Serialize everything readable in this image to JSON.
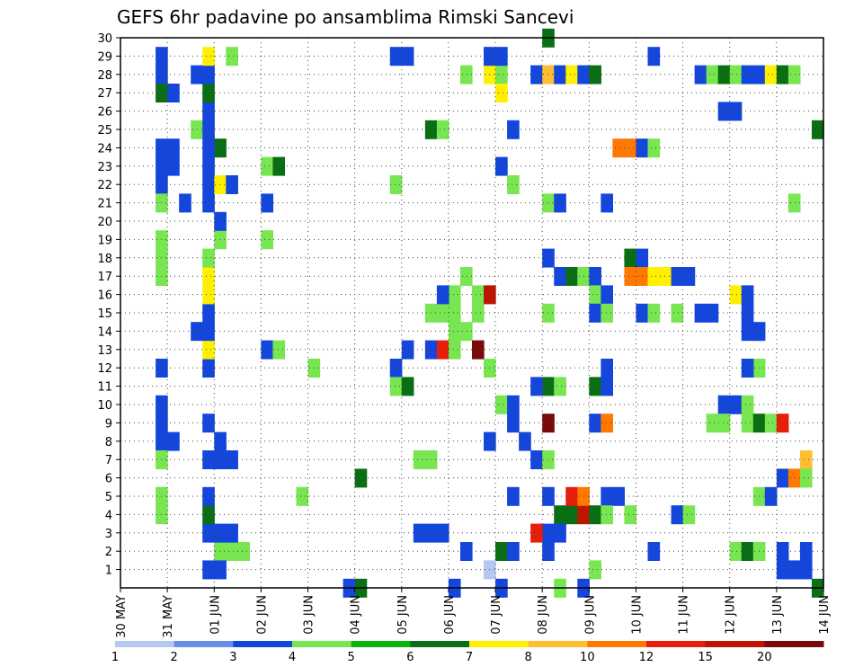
{
  "chart_data": {
    "type": "heatmap",
    "title": "GEFS 6hr padavine po ansamblima Rimski Sancevi",
    "xlabel": "",
    "ylabel": "",
    "x_tick_labels": [
      "30 MAY",
      "31 MAY",
      "01 JUN",
      "02 JUN",
      "03 JUN",
      "04 JUN",
      "05 JUN",
      "06 JUN",
      "07 JUN",
      "08 JUN",
      "09 JUN",
      "10 JUN",
      "11 JUN",
      "12 JUN",
      "13 JUN",
      "14 JUN"
    ],
    "y_tick_labels": [
      "1",
      "2",
      "3",
      "4",
      "5",
      "6",
      "7",
      "8",
      "9",
      "10",
      "11",
      "12",
      "13",
      "14",
      "15",
      "16",
      "17",
      "18",
      "19",
      "20",
      "21",
      "22",
      "23",
      "24",
      "25",
      "26",
      "27",
      "28",
      "29",
      "30"
    ],
    "xlim_days": [
      0,
      15
    ],
    "ylim_members": [
      0,
      30
    ],
    "cells_per_day": 4,
    "grid": "dotted",
    "legend": {
      "position": "bottom",
      "labels": [
        "1",
        "2",
        "3",
        "4",
        "5",
        "6",
        "7",
        "8",
        "10",
        "12",
        "15",
        "20"
      ],
      "colors": [
        "#b4c8f0",
        "#6690e8",
        "#1446dc",
        "#78e650",
        "#0ab40a",
        "#0a6e14",
        "#fff000",
        "#ffbe32",
        "#ff7800",
        "#e61e0a",
        "#be1400",
        "#780a0a"
      ]
    },
    "cells": [
      [
        1.75,
        1,
        2
      ],
      [
        2.0,
        2,
        3
      ],
      [
        2.25,
        2,
        3
      ],
      [
        2.5,
        2,
        3
      ],
      [
        1.75,
        3,
        2
      ],
      [
        2.0,
        3,
        2
      ],
      [
        2.25,
        3,
        2
      ],
      [
        1.75,
        4,
        5
      ],
      [
        1.75,
        5,
        2
      ],
      [
        1.75,
        7,
        2
      ],
      [
        2.0,
        7,
        2
      ],
      [
        2.25,
        7,
        2
      ],
      [
        2.0,
        8,
        2
      ],
      [
        1.75,
        9,
        2
      ],
      [
        1.75,
        12,
        2
      ],
      [
        1.75,
        13,
        6
      ],
      [
        1.5,
        14,
        2
      ],
      [
        1.75,
        14,
        2
      ],
      [
        1.75,
        15,
        2
      ],
      [
        1.75,
        16,
        6
      ],
      [
        1.75,
        17,
        6
      ],
      [
        1.75,
        18,
        3
      ],
      [
        2.0,
        19,
        3
      ],
      [
        2.0,
        20,
        2
      ],
      [
        1.75,
        21,
        2
      ],
      [
        1.75,
        22,
        2
      ],
      [
        2.0,
        22,
        6
      ],
      [
        2.25,
        22,
        2
      ],
      [
        1.75,
        23,
        2
      ],
      [
        2.0,
        24,
        5
      ],
      [
        1.75,
        24,
        2
      ],
      [
        1.5,
        25,
        3
      ],
      [
        1.75,
        25,
        2
      ],
      [
        1.75,
        26,
        2
      ],
      [
        1.75,
        27,
        5
      ],
      [
        1.5,
        28,
        2
      ],
      [
        1.75,
        28,
        2
      ],
      [
        1.75,
        29,
        6
      ],
      [
        2.25,
        29,
        3
      ],
      [
        2.0,
        1,
        2
      ],
      [
        0.75,
        29,
        2
      ],
      [
        0.75,
        28,
        2
      ],
      [
        0.75,
        27,
        5
      ],
      [
        1.0,
        27,
        2
      ],
      [
        0.75,
        24,
        2
      ],
      [
        1.0,
        24,
        2
      ],
      [
        0.75,
        23,
        2
      ],
      [
        1.0,
        23,
        2
      ],
      [
        0.75,
        22,
        2
      ],
      [
        0.75,
        21,
        3
      ],
      [
        1.25,
        21,
        2
      ],
      [
        0.75,
        19,
        3
      ],
      [
        0.75,
        18,
        3
      ],
      [
        0.75,
        17,
        3
      ],
      [
        0.75,
        12,
        2
      ],
      [
        0.75,
        10,
        2
      ],
      [
        0.75,
        9,
        2
      ],
      [
        0.75,
        8,
        2
      ],
      [
        1.0,
        8,
        2
      ],
      [
        0.75,
        7,
        3
      ],
      [
        0.75,
        5,
        3
      ],
      [
        0.75,
        4,
        3
      ],
      [
        3.0,
        23,
        3
      ],
      [
        3.25,
        23,
        5
      ],
      [
        3.0,
        21,
        2
      ],
      [
        3.0,
        19,
        3
      ],
      [
        3.0,
        13,
        2
      ],
      [
        3.25,
        13,
        3
      ],
      [
        4.0,
        12,
        3
      ],
      [
        3.75,
        5,
        3
      ],
      [
        5.0,
        6,
        5
      ],
      [
        5.0,
        0,
        5
      ],
      [
        4.75,
        0,
        2
      ],
      [
        5.75,
        29,
        2
      ],
      [
        6.0,
        29,
        2
      ],
      [
        5.75,
        22,
        3
      ],
      [
        6.5,
        25,
        5
      ],
      [
        6.75,
        25,
        3
      ],
      [
        5.75,
        12,
        2
      ],
      [
        6.0,
        13,
        2
      ],
      [
        6.5,
        13,
        2
      ],
      [
        6.75,
        13,
        9
      ],
      [
        7.0,
        13,
        3
      ],
      [
        7.0,
        14,
        3
      ],
      [
        7.25,
        14,
        3
      ],
      [
        6.75,
        15,
        3
      ],
      [
        6.5,
        15,
        3
      ],
      [
        7.0,
        15,
        3
      ],
      [
        7.0,
        16,
        3
      ],
      [
        6.75,
        16,
        2
      ],
      [
        7.25,
        17,
        3
      ],
      [
        7.5,
        16,
        3
      ],
      [
        7.75,
        16,
        10
      ],
      [
        7.5,
        15,
        3
      ],
      [
        7.5,
        13,
        11
      ],
      [
        5.75,
        11,
        3
      ],
      [
        6.0,
        11,
        5
      ],
      [
        6.25,
        7,
        3
      ],
      [
        6.5,
        7,
        3
      ],
      [
        6.25,
        3,
        2
      ],
      [
        6.5,
        3,
        2
      ],
      [
        6.75,
        3,
        2
      ],
      [
        7.25,
        2,
        2
      ],
      [
        7.0,
        0,
        2
      ],
      [
        7.25,
        28,
        3
      ],
      [
        7.75,
        28,
        6
      ],
      [
        8.0,
        28,
        3
      ],
      [
        8.0,
        27,
        6
      ],
      [
        7.75,
        29,
        2
      ],
      [
        8.0,
        29,
        2
      ],
      [
        8.0,
        23,
        2
      ],
      [
        8.25,
        22,
        3
      ],
      [
        8.25,
        25,
        2
      ],
      [
        7.75,
        12,
        3
      ],
      [
        8.0,
        10,
        3
      ],
      [
        8.25,
        10,
        2
      ],
      [
        8.25,
        9,
        2
      ],
      [
        7.75,
        8,
        2
      ],
      [
        8.5,
        8,
        2
      ],
      [
        8.25,
        5,
        2
      ],
      [
        8.0,
        2,
        5
      ],
      [
        8.25,
        2,
        2
      ],
      [
        7.75,
        1,
        0
      ],
      [
        8.0,
        0,
        2
      ],
      [
        9.0,
        30,
        5
      ],
      [
        8.75,
        28,
        2
      ],
      [
        9.0,
        28,
        7
      ],
      [
        9.25,
        28,
        2
      ],
      [
        9.5,
        28,
        6
      ],
      [
        9.75,
        28,
        2
      ],
      [
        10.0,
        28,
        5
      ],
      [
        9.0,
        21,
        3
      ],
      [
        9.25,
        21,
        2
      ],
      [
        9.0,
        18,
        2
      ],
      [
        9.0,
        15,
        3
      ],
      [
        9.25,
        17,
        2
      ],
      [
        9.5,
        17,
        5
      ],
      [
        9.75,
        17,
        3
      ],
      [
        10.0,
        17,
        2
      ],
      [
        9.0,
        11,
        5
      ],
      [
        9.25,
        11,
        3
      ],
      [
        8.75,
        11,
        2
      ],
      [
        9.0,
        9,
        11
      ],
      [
        8.75,
        7,
        2
      ],
      [
        9.0,
        7,
        3
      ],
      [
        9.0,
        5,
        2
      ],
      [
        9.25,
        4,
        5
      ],
      [
        9.5,
        4,
        5
      ],
      [
        9.75,
        4,
        10
      ],
      [
        10.0,
        4,
        5
      ],
      [
        9.5,
        5,
        9
      ],
      [
        9.75,
        5,
        8
      ],
      [
        9.0,
        3,
        2
      ],
      [
        8.75,
        3,
        9
      ],
      [
        9.25,
        3,
        2
      ],
      [
        9.0,
        2,
        2
      ],
      [
        9.25,
        0,
        3
      ],
      [
        9.75,
        0,
        2
      ],
      [
        10.0,
        16,
        3
      ],
      [
        10.25,
        16,
        2
      ],
      [
        10.0,
        15,
        2
      ],
      [
        10.25,
        15,
        3
      ],
      [
        10.25,
        12,
        2
      ],
      [
        10.0,
        11,
        5
      ],
      [
        10.25,
        11,
        2
      ],
      [
        10.0,
        9,
        2
      ],
      [
        10.25,
        9,
        8
      ],
      [
        10.25,
        5,
        2
      ],
      [
        10.5,
        5,
        2
      ],
      [
        10.25,
        4,
        3
      ],
      [
        10.75,
        4,
        3
      ],
      [
        10.0,
        1,
        3
      ],
      [
        10.25,
        21,
        2
      ],
      [
        10.5,
        24,
        8
      ],
      [
        10.75,
        24,
        8
      ],
      [
        11.0,
        24,
        2
      ],
      [
        11.25,
        24,
        3
      ],
      [
        10.75,
        18,
        5
      ],
      [
        11.0,
        18,
        2
      ],
      [
        10.75,
        17,
        8
      ],
      [
        11.0,
        17,
        8
      ],
      [
        11.25,
        17,
        6
      ],
      [
        11.5,
        17,
        6
      ],
      [
        11.75,
        17,
        2
      ],
      [
        12.0,
        17,
        2
      ],
      [
        11.0,
        15,
        2
      ],
      [
        11.25,
        15,
        3
      ],
      [
        11.75,
        15,
        3
      ],
      [
        11.25,
        29,
        2
      ],
      [
        11.25,
        2,
        2
      ],
      [
        11.75,
        4,
        2
      ],
      [
        12.0,
        4,
        3
      ],
      [
        12.25,
        15,
        2
      ],
      [
        12.5,
        15,
        2
      ],
      [
        12.5,
        9,
        3
      ],
      [
        12.25,
        28,
        2
      ],
      [
        12.5,
        28,
        3
      ],
      [
        12.75,
        28,
        5
      ],
      [
        13.0,
        28,
        3
      ],
      [
        13.25,
        28,
        2
      ],
      [
        13.5,
        28,
        2
      ],
      [
        13.75,
        28,
        6
      ],
      [
        14.0,
        28,
        5
      ],
      [
        14.25,
        28,
        3
      ],
      [
        12.75,
        26,
        2
      ],
      [
        13.0,
        26,
        2
      ],
      [
        13.0,
        16,
        6
      ],
      [
        13.25,
        16,
        2
      ],
      [
        13.25,
        15,
        2
      ],
      [
        13.25,
        14,
        2
      ],
      [
        13.5,
        14,
        2
      ],
      [
        13.5,
        12,
        3
      ],
      [
        13.25,
        12,
        2
      ],
      [
        12.75,
        10,
        2
      ],
      [
        13.0,
        10,
        2
      ],
      [
        13.25,
        10,
        3
      ],
      [
        12.75,
        9,
        3
      ],
      [
        13.25,
        9,
        3
      ],
      [
        13.5,
        9,
        5
      ],
      [
        13.75,
        9,
        3
      ],
      [
        14.0,
        9,
        9
      ],
      [
        13.5,
        5,
        3
      ],
      [
        13.75,
        5,
        2
      ],
      [
        13.0,
        2,
        3
      ],
      [
        13.25,
        2,
        5
      ],
      [
        13.5,
        2,
        3
      ],
      [
        14.25,
        21,
        3
      ],
      [
        14.5,
        7,
        7
      ],
      [
        14.0,
        6,
        2
      ],
      [
        14.25,
        6,
        8
      ],
      [
        14.5,
        6,
        3
      ],
      [
        14.0,
        2,
        2
      ],
      [
        14.5,
        2,
        2
      ],
      [
        14.0,
        1,
        2
      ],
      [
        14.25,
        1,
        2
      ],
      [
        14.5,
        1,
        2
      ],
      [
        14.75,
        25,
        5
      ],
      [
        14.75,
        0,
        5
      ]
    ]
  }
}
